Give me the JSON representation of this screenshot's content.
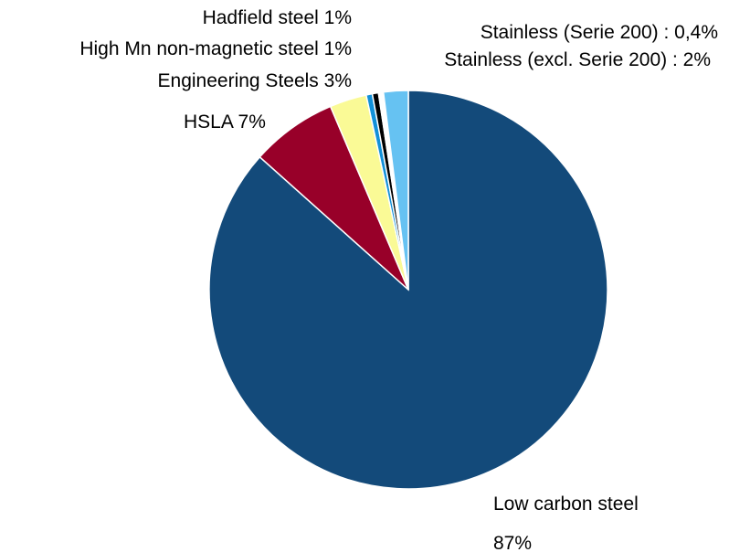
{
  "chart_data": {
    "type": "pie",
    "title": "",
    "legend": "none",
    "slices": [
      {
        "name": "Low carbon steel",
        "value": 86.6,
        "color": "#134a7a",
        "label_lines": [
          "Low carbon steel",
          "87%"
        ]
      },
      {
        "name": "HSLA",
        "value": 7,
        "color": "#980029",
        "label_lines": [
          "HSLA 7%"
        ]
      },
      {
        "name": "Engineering Steels",
        "value": 3,
        "color": "#fafa96",
        "label_lines": [
          "Engineering Steels 3%"
        ]
      },
      {
        "name": "High Mn non-magnetic steel",
        "value": 0.5,
        "color": "#1290d8",
        "label_lines": [
          "High Mn non-magnetic steel 1%"
        ]
      },
      {
        "name": "Hadfield steel",
        "value": 0.5,
        "color": "#000000",
        "label_lines": [
          "Hadfield steel 1%"
        ]
      },
      {
        "name": "Stainless (Serie 200)",
        "value": 0.4,
        "color": "#ffffff",
        "label_lines": [
          "Stainless (Serie 200) : 0,4%"
        ]
      },
      {
        "name": "Stainless (excl. Serie 200)",
        "value": 2,
        "color": "#66c2f2",
        "label_lines": [
          "Stainless (excl. Serie 200) : 2%"
        ]
      }
    ]
  }
}
